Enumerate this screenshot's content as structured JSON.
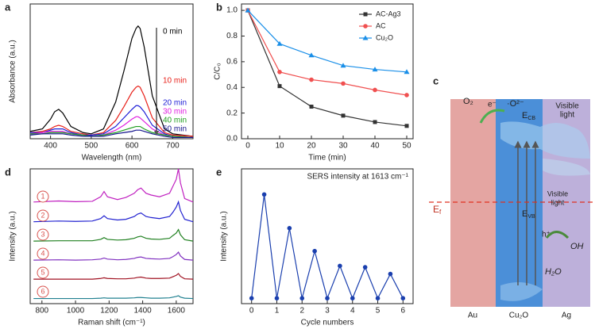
{
  "chart_data": [
    {
      "type": "line",
      "panel": "a",
      "xlabel": "Wavelength (nm)",
      "ylabel": "Absorbance (a.u.)",
      "x": [
        350,
        380,
        400,
        410,
        420,
        430,
        450,
        480,
        500,
        530,
        560,
        580,
        600,
        610,
        615,
        620,
        630,
        650,
        680,
        700,
        750
      ],
      "xlim": [
        350,
        750
      ],
      "xticks": [
        400,
        500,
        600,
        700
      ],
      "ylim": [
        0,
        1.1
      ],
      "legend": "right",
      "series": [
        {
          "name": "0 min",
          "color": "#000000",
          "values": [
            0.06,
            0.08,
            0.16,
            0.22,
            0.24,
            0.21,
            0.1,
            0.05,
            0.04,
            0.08,
            0.3,
            0.55,
            0.82,
            0.9,
            0.92,
            0.9,
            0.75,
            0.35,
            0.08,
            0.04,
            0.02
          ]
        },
        {
          "name": "10 min",
          "color": "#e8211a",
          "values": [
            0.05,
            0.06,
            0.08,
            0.1,
            0.11,
            0.1,
            0.06,
            0.04,
            0.03,
            0.05,
            0.15,
            0.26,
            0.38,
            0.42,
            0.43,
            0.42,
            0.35,
            0.17,
            0.05,
            0.03,
            0.02
          ]
        },
        {
          "name": "20 min",
          "color": "#1c1cd6",
          "values": [
            0.05,
            0.05,
            0.07,
            0.08,
            0.08,
            0.08,
            0.05,
            0.03,
            0.03,
            0.04,
            0.1,
            0.17,
            0.24,
            0.27,
            0.27,
            0.26,
            0.22,
            0.11,
            0.04,
            0.02,
            0.01
          ]
        },
        {
          "name": "30 min",
          "color": "#e020e0",
          "values": [
            0.04,
            0.05,
            0.06,
            0.06,
            0.06,
            0.06,
            0.04,
            0.03,
            0.02,
            0.03,
            0.07,
            0.11,
            0.16,
            0.18,
            0.18,
            0.17,
            0.14,
            0.08,
            0.03,
            0.02,
            0.01
          ]
        },
        {
          "name": "40 min",
          "color": "#1e9e1e",
          "values": [
            0.04,
            0.04,
            0.05,
            0.05,
            0.05,
            0.05,
            0.04,
            0.03,
            0.02,
            0.03,
            0.05,
            0.07,
            0.09,
            0.1,
            0.1,
            0.1,
            0.08,
            0.05,
            0.03,
            0.02,
            0.01
          ]
        },
        {
          "name": "50 min",
          "color": "#14148c",
          "values": [
            0.03,
            0.04,
            0.04,
            0.04,
            0.04,
            0.04,
            0.03,
            0.02,
            0.02,
            0.02,
            0.04,
            0.05,
            0.06,
            0.07,
            0.07,
            0.07,
            0.06,
            0.04,
            0.02,
            0.01,
            0.01
          ]
        }
      ]
    },
    {
      "type": "line",
      "panel": "b",
      "xlabel": "Time (min)",
      "ylabel": "C/C₀",
      "x": [
        0,
        10,
        20,
        30,
        40,
        50
      ],
      "xlim": [
        -2,
        52
      ],
      "xticks": [
        0,
        10,
        20,
        30,
        40,
        50
      ],
      "ylim": [
        0,
        1.05
      ],
      "yticks": [
        {
          "value": 0,
          "label": "0.0"
        },
        0.2,
        0.4,
        0.6,
        0.8,
        {
          "value": 1,
          "label": "1.0"
        }
      ],
      "legend": "upper right",
      "series": [
        {
          "name": "AC-Ag3",
          "color": "#333333",
          "marker": "square",
          "values": [
            1.0,
            0.41,
            0.25,
            0.18,
            0.13,
            0.1
          ]
        },
        {
          "name": "AC",
          "color": "#f05050",
          "marker": "circle",
          "values": [
            1.0,
            0.52,
            0.46,
            0.43,
            0.38,
            0.34
          ]
        },
        {
          "name": "Cu₂O",
          "color": "#1a8fe8",
          "marker": "triangle",
          "values": [
            1.0,
            0.74,
            0.65,
            0.57,
            0.54,
            0.52
          ]
        }
      ]
    },
    {
      "type": "ridgeline",
      "panel": "d",
      "xlabel": "Raman shift (cm⁻¹)",
      "ylabel": "Intensity (a.u.)",
      "x": [
        750,
        900,
        1000,
        1100,
        1150,
        1170,
        1190,
        1250,
        1300,
        1350,
        1370,
        1390,
        1420,
        1450,
        1500,
        1560,
        1580,
        1600,
        1613,
        1625,
        1650,
        1700
      ],
      "xlim": [
        730,
        1700
      ],
      "xticks": [
        800,
        1000,
        1200,
        1400,
        1600
      ],
      "ylim": [
        0,
        1
      ],
      "series": [
        {
          "name": "1",
          "color": "#c020c0",
          "values": [
            0.05,
            0.08,
            0.06,
            0.07,
            0.2,
            0.35,
            0.2,
            0.12,
            0.18,
            0.3,
            0.4,
            0.45,
            0.3,
            0.25,
            0.2,
            0.3,
            0.5,
            0.7,
            1.0,
            0.6,
            0.15,
            0.05
          ]
        },
        {
          "name": "2",
          "color": "#2020d0",
          "values": [
            0.03,
            0.05,
            0.04,
            0.05,
            0.12,
            0.2,
            0.12,
            0.08,
            0.1,
            0.18,
            0.25,
            0.28,
            0.18,
            0.15,
            0.12,
            0.18,
            0.3,
            0.45,
            0.6,
            0.35,
            0.1,
            0.03
          ]
        },
        {
          "name": "3",
          "color": "#208020",
          "values": [
            0.02,
            0.03,
            0.03,
            0.03,
            0.07,
            0.12,
            0.07,
            0.05,
            0.06,
            0.1,
            0.14,
            0.16,
            0.1,
            0.08,
            0.07,
            0.1,
            0.18,
            0.25,
            0.35,
            0.2,
            0.06,
            0.02
          ]
        },
        {
          "name": "4",
          "color": "#8030c0",
          "values": [
            0.02,
            0.03,
            0.02,
            0.03,
            0.05,
            0.08,
            0.05,
            0.03,
            0.04,
            0.07,
            0.1,
            0.11,
            0.07,
            0.06,
            0.05,
            0.07,
            0.12,
            0.18,
            0.25,
            0.14,
            0.04,
            0.02
          ]
        },
        {
          "name": "5",
          "color": "#a01020",
          "values": [
            0.02,
            0.02,
            0.02,
            0.02,
            0.04,
            0.06,
            0.04,
            0.03,
            0.03,
            0.05,
            0.07,
            0.08,
            0.05,
            0.04,
            0.04,
            0.05,
            0.09,
            0.13,
            0.18,
            0.1,
            0.03,
            0.02
          ]
        },
        {
          "name": "6",
          "color": "#208090",
          "values": [
            0.01,
            0.01,
            0.01,
            0.01,
            0.02,
            0.03,
            0.02,
            0.02,
            0.02,
            0.03,
            0.04,
            0.04,
            0.03,
            0.02,
            0.02,
            0.03,
            0.05,
            0.07,
            0.09,
            0.05,
            0.02,
            0.01
          ]
        }
      ]
    },
    {
      "type": "line",
      "panel": "e",
      "xlabel": "Cycle numbers",
      "ylabel": "Intensity (a.u.)",
      "annotation": "SERS intensity at 1613 cm⁻¹",
      "x": [
        0,
        0.5,
        1,
        1.5,
        2,
        2.5,
        3,
        3.5,
        4,
        4.5,
        5,
        5.5,
        6
      ],
      "xlim": [
        -0.4,
        6.4
      ],
      "xticks": [
        0,
        1,
        2,
        3,
        4,
        5,
        6
      ],
      "ylim": [
        0,
        1
      ],
      "series": [
        {
          "color": "#1a3fae",
          "marker": "circle",
          "values": [
            0.04,
            0.81,
            0.04,
            0.56,
            0.04,
            0.39,
            0.04,
            0.28,
            0.04,
            0.27,
            0.04,
            0.22,
            0.04
          ]
        }
      ]
    }
  ],
  "diagram": {
    "panel": "c",
    "o2": "O₂",
    "electron": "e⁻",
    "superoxide": "·O²⁻",
    "ecb": {
      "main": "E",
      "sub": "CB"
    },
    "evb": {
      "main": "E",
      "sub": "VB"
    },
    "ef": {
      "main": "E",
      "sub": "f"
    },
    "visible_top": [
      "Visible",
      "light"
    ],
    "visible_mid": [
      "Visible",
      "light"
    ],
    "hole": "h⁺",
    "oh": "OH",
    "water": "H₂O",
    "au": "Au",
    "cu2o": "Cu₂O",
    "ag": "Ag"
  }
}
